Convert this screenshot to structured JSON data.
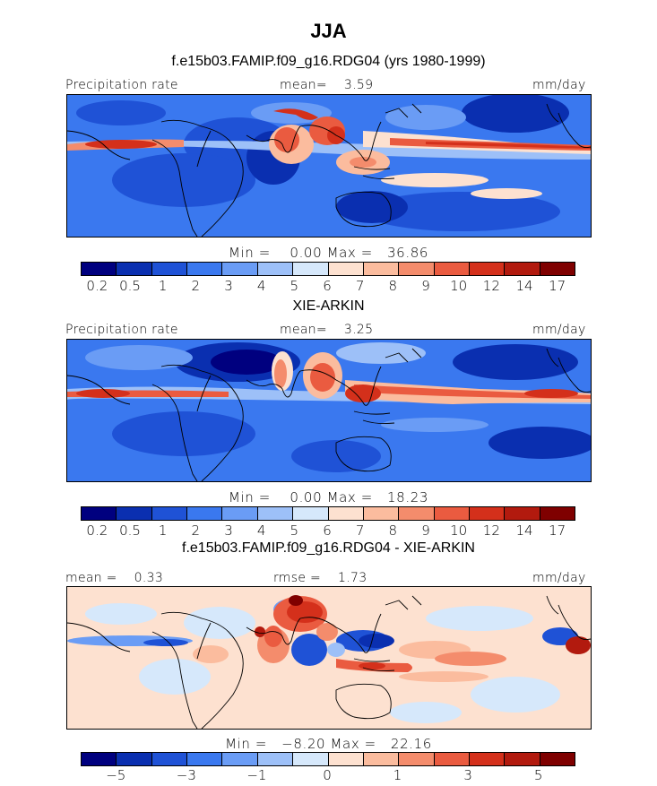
{
  "title": "JJA",
  "panels": [
    {
      "title": "f.e15b03.FAMIP.f09_g16.RDG04 (yrs 1980-1999)",
      "left_label": "Precipitation rate",
      "center_label": "mean=    3.59",
      "right_label": "mm/day",
      "min_max": "Min =    0.00 Max =   36.86"
    },
    {
      "title": "XIE-ARKIN",
      "left_label": "Precipitation rate",
      "center_label": "mean=    3.25",
      "right_label": "mm/day",
      "min_max": "Min =    0.00 Max =   18.23"
    },
    {
      "title": "f.e15b03.FAMIP.f09_g16.RDG04 - XIE-ARKIN",
      "left_label": "mean =    0.33",
      "center_label": "rmse =    1.73",
      "right_label": "mm/day",
      "min_max": "Min =   −8.20 Max =   22.16"
    }
  ],
  "colorbars": {
    "precip": {
      "colors": [
        "#00007f",
        "#0a2fb0",
        "#1f52d6",
        "#3a78ef",
        "#6a9cf5",
        "#9dc0f8",
        "#d6e8fb",
        "#fde1d0",
        "#fbbc9e",
        "#f48c6c",
        "#ea5b40",
        "#d4301b",
        "#b21a0e",
        "#7f0000"
      ],
      "labels": [
        "0.2",
        "0.5",
        "1",
        "2",
        "3",
        "4",
        "5",
        "6",
        "7",
        "8",
        "9",
        "10",
        "12",
        "14",
        "17"
      ]
    },
    "diff": {
      "colors": [
        "#00007f",
        "#0a2fb0",
        "#1f52d6",
        "#3a78ef",
        "#6a9cf5",
        "#9dc0f8",
        "#d6e8fb",
        "#fde1d0",
        "#fbbc9e",
        "#f48c6c",
        "#ea5b40",
        "#d4301b",
        "#b21a0e",
        "#7f0000"
      ],
      "labels": [
        "−5",
        "−3",
        "−1",
        "0",
        "1",
        "3",
        "5"
      ]
    }
  }
}
